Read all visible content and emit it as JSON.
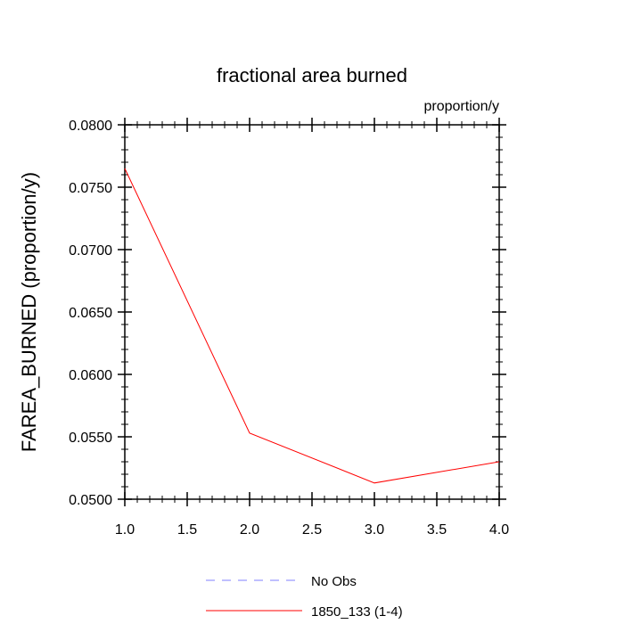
{
  "chart_data": {
    "type": "line",
    "title": "fractional area burned",
    "units_label": "proportion/y",
    "ylabel": "FAREA_BURNED  (proportion/y)",
    "xlabel": "",
    "xlim": [
      1.0,
      4.0
    ],
    "ylim": [
      0.05,
      0.08
    ],
    "x_ticks": [
      "1.0",
      "1.5",
      "2.0",
      "2.5",
      "3.0",
      "3.5",
      "4.0"
    ],
    "y_ticks": [
      "0.0500",
      "0.0550",
      "0.0600",
      "0.0650",
      "0.0700",
      "0.0750",
      "0.0800"
    ],
    "grid": false,
    "legend_position": "bottom-center",
    "series": [
      {
        "name": "No Obs",
        "color": "#8080ff",
        "dash": "dashed",
        "x": [],
        "y": []
      },
      {
        "name": "1850_133 (1-4)",
        "color": "#ff0000",
        "dash": "solid",
        "x": [
          1,
          2,
          3,
          4
        ],
        "y": [
          0.0765,
          0.0553,
          0.0513,
          0.053
        ]
      }
    ]
  }
}
